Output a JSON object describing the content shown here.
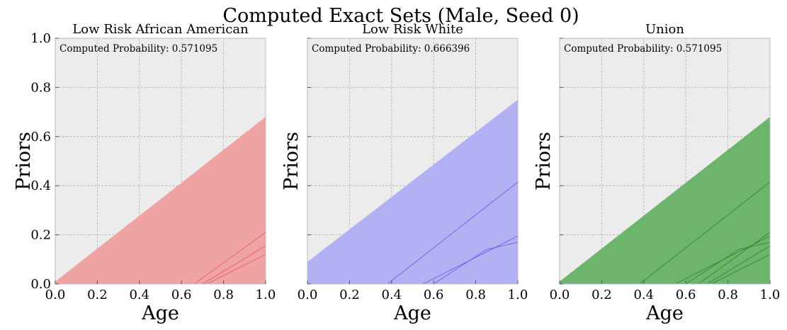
{
  "figure": {
    "suptitle": "Computed Exact Sets (Male, Seed 0)"
  },
  "style": {
    "axes_facecolor": "#ececec",
    "grid_color": "#b0b0b0",
    "spine_color": "#bcbcbc"
  },
  "chart_data": [
    {
      "type": "area",
      "title": "Low Risk African American",
      "xlabel": "Age",
      "ylabel": "Priors",
      "xlim": [
        0,
        1
      ],
      "ylim": [
        0,
        1
      ],
      "xticks": [
        "0.0",
        "0.2",
        "0.4",
        "0.6",
        "0.8",
        "1.0"
      ],
      "yticks": [
        "0.0",
        "0.2",
        "0.4",
        "0.6",
        "0.8",
        "1.0"
      ],
      "show_yticklabels": true,
      "grid": true,
      "annotation": "Computed Probability: 0.571095",
      "color": "#f0a3a3",
      "line_color": "#e86060",
      "region": {
        "x": [
          0,
          1
        ],
        "y_lower": [
          0,
          0
        ],
        "y_upper": [
          0.01,
          0.68
        ]
      },
      "lines": [
        {
          "x": [
            0.66,
            1.0
          ],
          "y": [
            0.0,
            0.21
          ]
        },
        {
          "x": [
            0.7,
            1.0
          ],
          "y": [
            0.0,
            0.155
          ]
        },
        {
          "x": [
            0.72,
            1.0
          ],
          "y": [
            0.0,
            0.12
          ]
        }
      ]
    },
    {
      "type": "area",
      "title": "Low Risk White",
      "xlabel": "Age",
      "ylabel": "Priors",
      "xlim": [
        0,
        1
      ],
      "ylim": [
        0,
        1
      ],
      "xticks": [
        "0.0",
        "0.2",
        "0.4",
        "0.6",
        "0.8",
        "1.0"
      ],
      "yticks": [
        "0.0",
        "0.2",
        "0.4",
        "0.6",
        "0.8",
        "1.0"
      ],
      "show_yticklabels": false,
      "grid": true,
      "annotation": "Computed Probability: 0.666396",
      "color": "#b1b1f3",
      "line_color": "#6464ee",
      "region": {
        "x": [
          0,
          1
        ],
        "y_lower": [
          0,
          0
        ],
        "y_upper": [
          0.09,
          0.75
        ]
      },
      "lines": [
        {
          "x": [
            0.38,
            1.0
          ],
          "y": [
            0.0,
            0.415
          ]
        },
        {
          "x": [
            0.55,
            1.0
          ],
          "y": [
            0.0,
            0.195
          ]
        },
        {
          "x": [
            0.6,
            0.85,
            1.0
          ],
          "y": [
            0.0,
            0.14,
            0.17
          ]
        }
      ]
    },
    {
      "type": "area",
      "title": "Union",
      "xlabel": "Age",
      "ylabel": "Priors",
      "xlim": [
        0,
        1
      ],
      "ylim": [
        0,
        1
      ],
      "xticks": [
        "0.0",
        "0.2",
        "0.4",
        "0.6",
        "0.8",
        "1.0"
      ],
      "yticks": [
        "0.0",
        "0.2",
        "0.4",
        "0.6",
        "0.8",
        "1.0"
      ],
      "show_yticklabels": false,
      "grid": true,
      "annotation": "Computed Probability: 0.571095",
      "color": "#6db56d",
      "line_color": "#2e8b2e",
      "region": {
        "x": [
          0,
          1
        ],
        "y_lower": [
          0,
          0
        ],
        "y_upper": [
          0.01,
          0.68
        ]
      },
      "lines": [
        {
          "x": [
            0.38,
            1.0
          ],
          "y": [
            0.0,
            0.415
          ]
        },
        {
          "x": [
            0.55,
            1.0
          ],
          "y": [
            0.0,
            0.195
          ]
        },
        {
          "x": [
            0.6,
            0.85,
            1.0
          ],
          "y": [
            0.0,
            0.14,
            0.17
          ]
        },
        {
          "x": [
            0.66,
            1.0
          ],
          "y": [
            0.0,
            0.21
          ]
        },
        {
          "x": [
            0.7,
            1.0
          ],
          "y": [
            0.0,
            0.155
          ]
        },
        {
          "x": [
            0.72,
            1.0
          ],
          "y": [
            0.0,
            0.12
          ]
        }
      ]
    }
  ]
}
